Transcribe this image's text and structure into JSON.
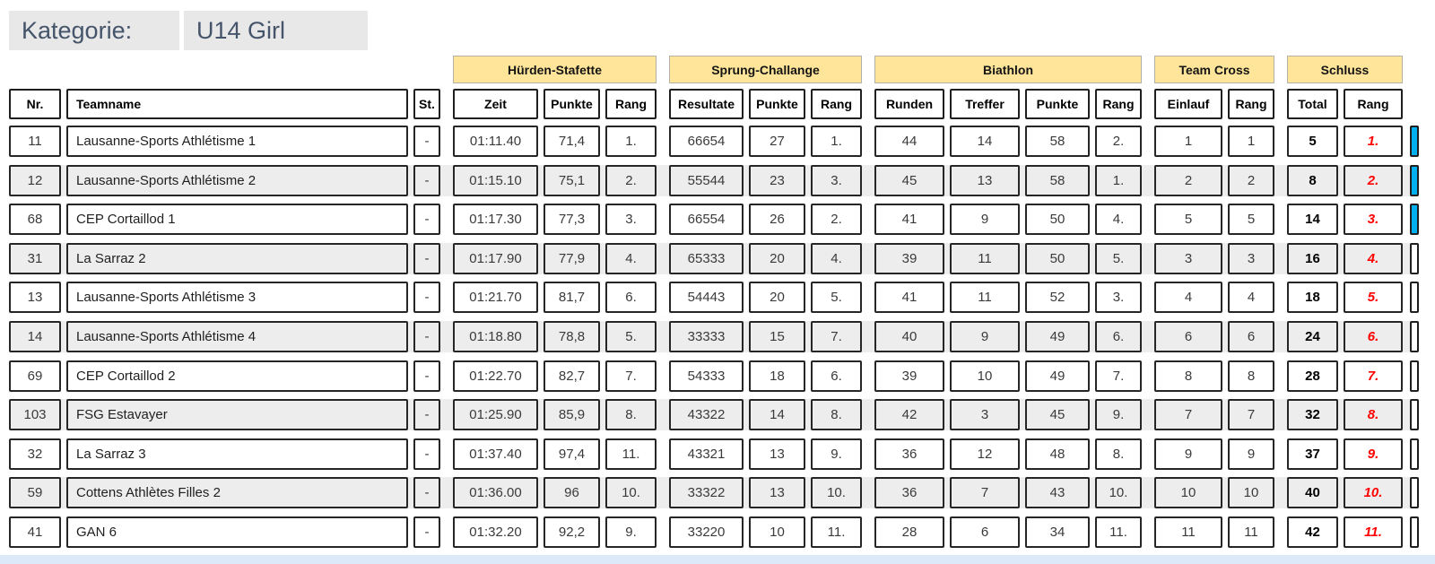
{
  "kategorie": {
    "label": "Kategorie:",
    "value": "U14 Girl"
  },
  "table": {
    "groups": [
      {
        "label": "Hürden-Stafette"
      },
      {
        "label": "Sprung-Challange"
      },
      {
        "label": "Biathlon"
      },
      {
        "label": "Team Cross"
      },
      {
        "label": "Schluss"
      }
    ],
    "columns": [
      "Nr.",
      "Teamname",
      "St.",
      "Zeit",
      "Punkte",
      "Rang",
      "Resultate",
      "Punkte",
      "Rang",
      "Runden",
      "Treffer",
      "Punkte",
      "Rang",
      "Einlauf",
      "Rang",
      "Total",
      "Rang"
    ],
    "rows": [
      {
        "cells": [
          "11",
          "Lausanne-Sports Athlétisme 1",
          "-",
          "01:11.40",
          "71,4",
          "1.",
          "66654",
          "27",
          "1.",
          "44",
          "14",
          "58",
          "2.",
          "1",
          "1",
          "5",
          "1."
        ],
        "podium": true
      },
      {
        "cells": [
          "12",
          "Lausanne-Sports Athlétisme 2",
          "-",
          "01:15.10",
          "75,1",
          "2.",
          "55544",
          "23",
          "3.",
          "45",
          "13",
          "58",
          "1.",
          "2",
          "2",
          "8",
          "2."
        ],
        "podium": true
      },
      {
        "cells": [
          "68",
          "CEP Cortaillod 1",
          "-",
          "01:17.30",
          "77,3",
          "3.",
          "66554",
          "26",
          "2.",
          "41",
          "9",
          "50",
          "4.",
          "5",
          "5",
          "14",
          "3."
        ],
        "podium": true
      },
      {
        "cells": [
          "31",
          "La Sarraz 2",
          "-",
          "01:17.90",
          "77,9",
          "4.",
          "65333",
          "20",
          "4.",
          "39",
          "11",
          "50",
          "5.",
          "3",
          "3",
          "16",
          "4."
        ],
        "podium": false
      },
      {
        "cells": [
          "13",
          "Lausanne-Sports Athlétisme 3",
          "-",
          "01:21.70",
          "81,7",
          "6.",
          "54443",
          "20",
          "5.",
          "41",
          "11",
          "52",
          "3.",
          "4",
          "4",
          "18",
          "5."
        ],
        "podium": false
      },
      {
        "cells": [
          "14",
          "Lausanne-Sports Athlétisme 4",
          "-",
          "01:18.80",
          "78,8",
          "5.",
          "33333",
          "15",
          "7.",
          "40",
          "9",
          "49",
          "6.",
          "6",
          "6",
          "24",
          "6."
        ],
        "podium": false
      },
      {
        "cells": [
          "69",
          "CEP Cortaillod 2",
          "-",
          "01:22.70",
          "82,7",
          "7.",
          "54333",
          "18",
          "6.",
          "39",
          "10",
          "49",
          "7.",
          "8",
          "8",
          "28",
          "7."
        ],
        "podium": false
      },
      {
        "cells": [
          "103",
          "FSG Estavayer",
          "-",
          "01:25.90",
          "85,9",
          "8.",
          "43322",
          "14",
          "8.",
          "42",
          "3",
          "45",
          "9.",
          "7",
          "7",
          "32",
          "8."
        ],
        "podium": false
      },
      {
        "cells": [
          "32",
          "La Sarraz 3",
          "-",
          "01:37.40",
          "97,4",
          "11.",
          "43321",
          "13",
          "9.",
          "36",
          "12",
          "48",
          "8.",
          "9",
          "9",
          "37",
          "9."
        ],
        "podium": false
      },
      {
        "cells": [
          "59",
          "Cottens Athlètes Filles 2",
          "-",
          "01:36.00",
          "96",
          "10.",
          "33322",
          "13",
          "10.",
          "36",
          "7",
          "43",
          "10.",
          "10",
          "10",
          "40",
          "10."
        ],
        "podium": false
      },
      {
        "cells": [
          "41",
          "GAN 6",
          "-",
          "01:32.20",
          "92,2",
          "9.",
          "33220",
          "10",
          "11.",
          "28",
          "6",
          "34",
          "11.",
          "11",
          "11",
          "42",
          "11."
        ],
        "podium": false
      }
    ]
  },
  "colors": {
    "event_header_fill": "#FFE599",
    "podium_bar": "#00B0F0",
    "final_rank_text": "#FF0000",
    "alt_row_fill": "#EDEDED",
    "category_fill": "#E9E8E8",
    "category_text": "#44546A",
    "bottom_strip": "#DBE9F8"
  }
}
